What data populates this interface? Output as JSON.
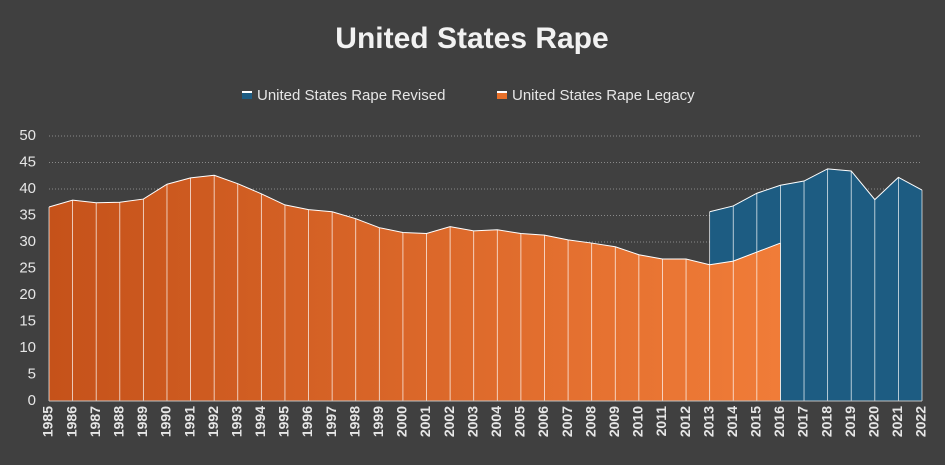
{
  "chart_data": {
    "type": "area",
    "title": "United States Rape",
    "categories": [
      "1985",
      "1986",
      "1987",
      "1988",
      "1989",
      "1990",
      "1991",
      "1992",
      "1993",
      "1994",
      "1995",
      "1996",
      "1997",
      "1998",
      "1999",
      "2000",
      "2001",
      "2002",
      "2003",
      "2004",
      "2005",
      "2006",
      "2007",
      "2008",
      "2009",
      "2010",
      "2011",
      "2012",
      "2013",
      "2014",
      "2015",
      "2016",
      "2017",
      "2018",
      "2019",
      "2020",
      "2021",
      "2022"
    ],
    "series": [
      {
        "name": "United States Rape Revised",
        "color": "#1d5c82",
        "values": [
          null,
          null,
          null,
          null,
          null,
          null,
          null,
          null,
          null,
          null,
          null,
          null,
          null,
          null,
          null,
          null,
          null,
          null,
          null,
          null,
          null,
          null,
          null,
          null,
          null,
          null,
          null,
          null,
          35.7,
          36.8,
          39.2,
          40.7,
          41.5,
          43.8,
          43.4,
          38.0,
          42.2,
          39.8
        ]
      },
      {
        "name": "United States Rape Legacy",
        "color": "#e8702a",
        "values": [
          36.6,
          37.9,
          37.4,
          37.5,
          38.1,
          40.9,
          42.1,
          42.6,
          41.0,
          39.1,
          37.0,
          36.1,
          35.7,
          34.4,
          32.7,
          31.8,
          31.6,
          32.9,
          32.1,
          32.3,
          31.6,
          31.3,
          30.4,
          29.8,
          29.1,
          27.6,
          26.8,
          26.8,
          25.7,
          26.4,
          28.1,
          29.8,
          null,
          null,
          null,
          null,
          null,
          null
        ]
      }
    ],
    "ylim": [
      0,
      50
    ],
    "yticks": [
      0,
      5,
      10,
      15,
      20,
      25,
      30,
      35,
      40,
      45,
      50
    ],
    "grid": true,
    "legend": "top"
  }
}
